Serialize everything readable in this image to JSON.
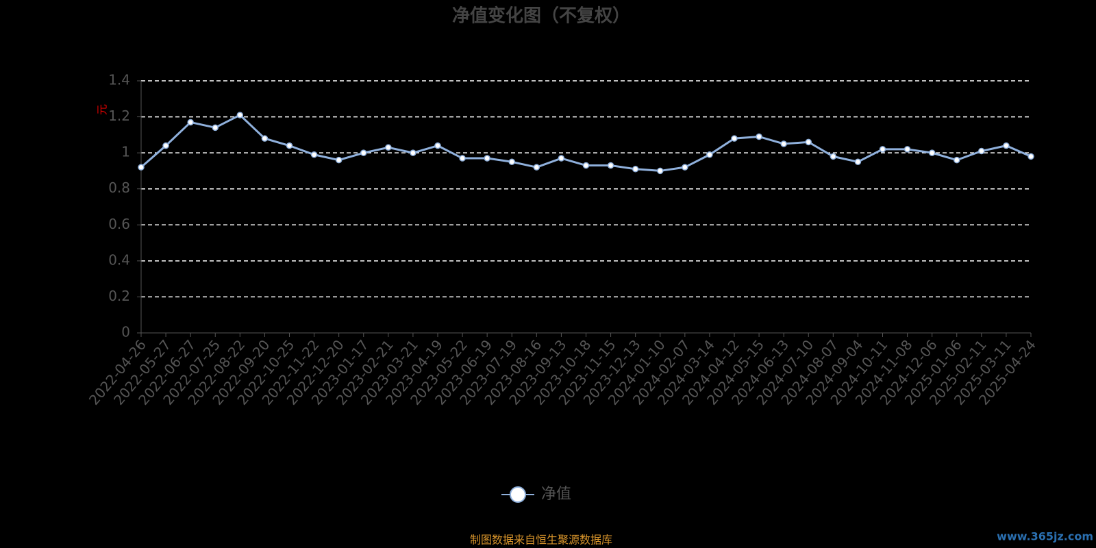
{
  "chart_data": {
    "type": "line",
    "title": "净值变化图（不复权）",
    "y_label": "元",
    "categories": [
      "2022-04-26",
      "2022-05-27",
      "2022-06-27",
      "2022-07-25",
      "2022-08-22",
      "2022-09-20",
      "2022-10-25",
      "2022-11-22",
      "2022-12-20",
      "2023-01-17",
      "2023-02-21",
      "2023-03-21",
      "2023-04-19",
      "2023-05-22",
      "2023-06-19",
      "2023-07-19",
      "2023-08-16",
      "2023-09-13",
      "2023-10-18",
      "2023-11-15",
      "2023-12-13",
      "2024-01-10",
      "2024-02-07",
      "2024-03-14",
      "2024-04-12",
      "2024-05-15",
      "2024-06-13",
      "2024-07-10",
      "2024-08-07",
      "2024-09-04",
      "2024-10-11",
      "2024-11-08",
      "2024-12-06",
      "2025-01-06",
      "2025-02-11",
      "2025-03-11",
      "2025-04-24"
    ],
    "series": [
      {
        "name": "净值",
        "color": "#8fb0dc",
        "values": [
          0.92,
          1.04,
          1.17,
          1.14,
          1.21,
          1.08,
          1.04,
          0.99,
          0.96,
          1.0,
          1.03,
          1.0,
          1.04,
          0.97,
          0.97,
          0.95,
          0.92,
          0.97,
          0.93,
          0.93,
          0.91,
          0.9,
          0.92,
          0.99,
          1.08,
          1.09,
          1.05,
          1.06,
          0.98,
          0.95,
          1.02,
          1.02,
          1.0,
          0.96,
          1.01,
          1.04,
          0.98
        ]
      }
    ],
    "ylim": [
      0,
      1.4
    ],
    "yticks": [
      0,
      0.2,
      0.4,
      0.6,
      0.8,
      1,
      1.2,
      1.4
    ],
    "grid": true,
    "footer": "制图数据来自恒生聚源数据库",
    "watermark": "www.365jz.com"
  }
}
